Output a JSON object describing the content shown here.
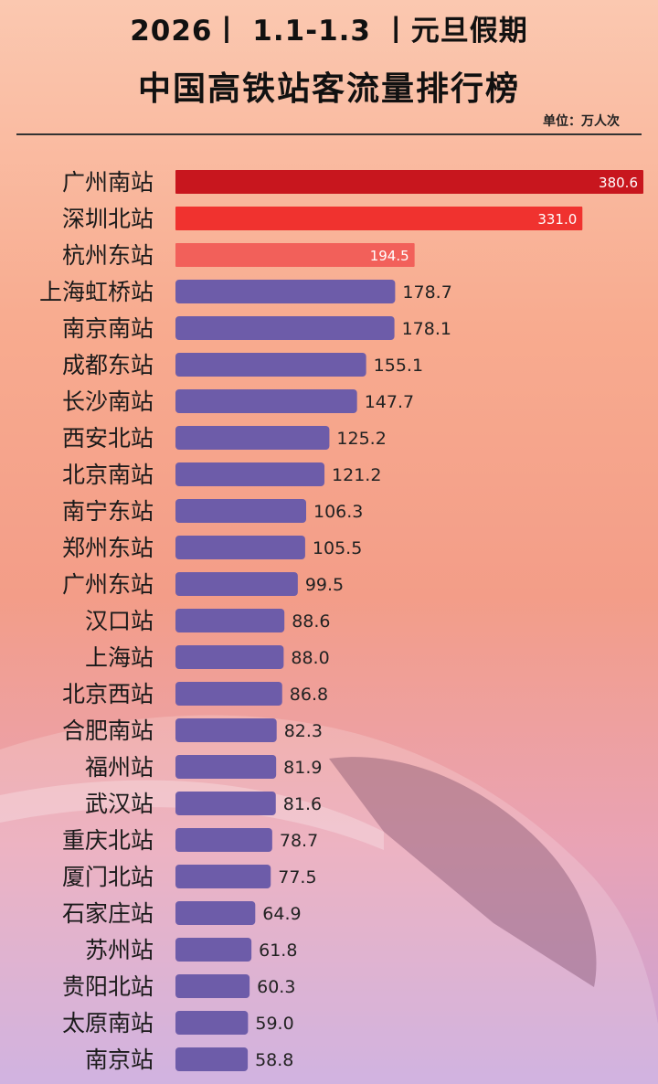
{
  "header": {
    "title_line1": "2026丨 1.1-1.3 丨元旦假期",
    "title_line2": "中国高铁站客流量排行榜",
    "unit": "单位：万人次"
  },
  "chart_data": {
    "type": "bar",
    "orientation": "horizontal",
    "title": "中国高铁站客流量排行榜",
    "subtitle": "2026丨 1.1-1.3 丨元旦假期",
    "unit": "单位：万人次",
    "categories": [
      "广州南站",
      "深圳北站",
      "杭州东站",
      "上海虹桥站",
      "南京南站",
      "成都东站",
      "长沙南站",
      "西安北站",
      "北京南站",
      "南宁东站",
      "郑州东站",
      "广州东站",
      "汉口站",
      "上海站",
      "北京西站",
      "合肥南站",
      "福州站",
      "武汉站",
      "重庆北站",
      "厦门北站",
      "石家庄站",
      "苏州站",
      "贵阳北站",
      "太原南站",
      "南京站"
    ],
    "values": [
      380.6,
      331.0,
      194.5,
      178.7,
      178.1,
      155.1,
      147.7,
      125.2,
      121.2,
      106.3,
      105.5,
      99.5,
      88.6,
      88.0,
      86.8,
      82.3,
      81.9,
      81.6,
      78.7,
      77.5,
      64.9,
      61.8,
      60.3,
      59.0,
      58.8
    ],
    "value_labels": [
      "380.6",
      "331.0",
      "194.5",
      "178.7",
      "178.1",
      "155.1",
      "147.7",
      "125.2",
      "121.2",
      "106.3",
      "105.5",
      "99.5",
      "88.6",
      "88.0",
      "86.8",
      "82.3",
      "81.9",
      "81.6",
      "78.7",
      "77.5",
      "64.9",
      "61.8",
      "60.3",
      "59.0",
      "58.8"
    ],
    "colors": {
      "top1": "#c8161e",
      "top2": "#f0322f",
      "top3": "#f2605a",
      "rest": "#6d5ca9"
    }
  }
}
